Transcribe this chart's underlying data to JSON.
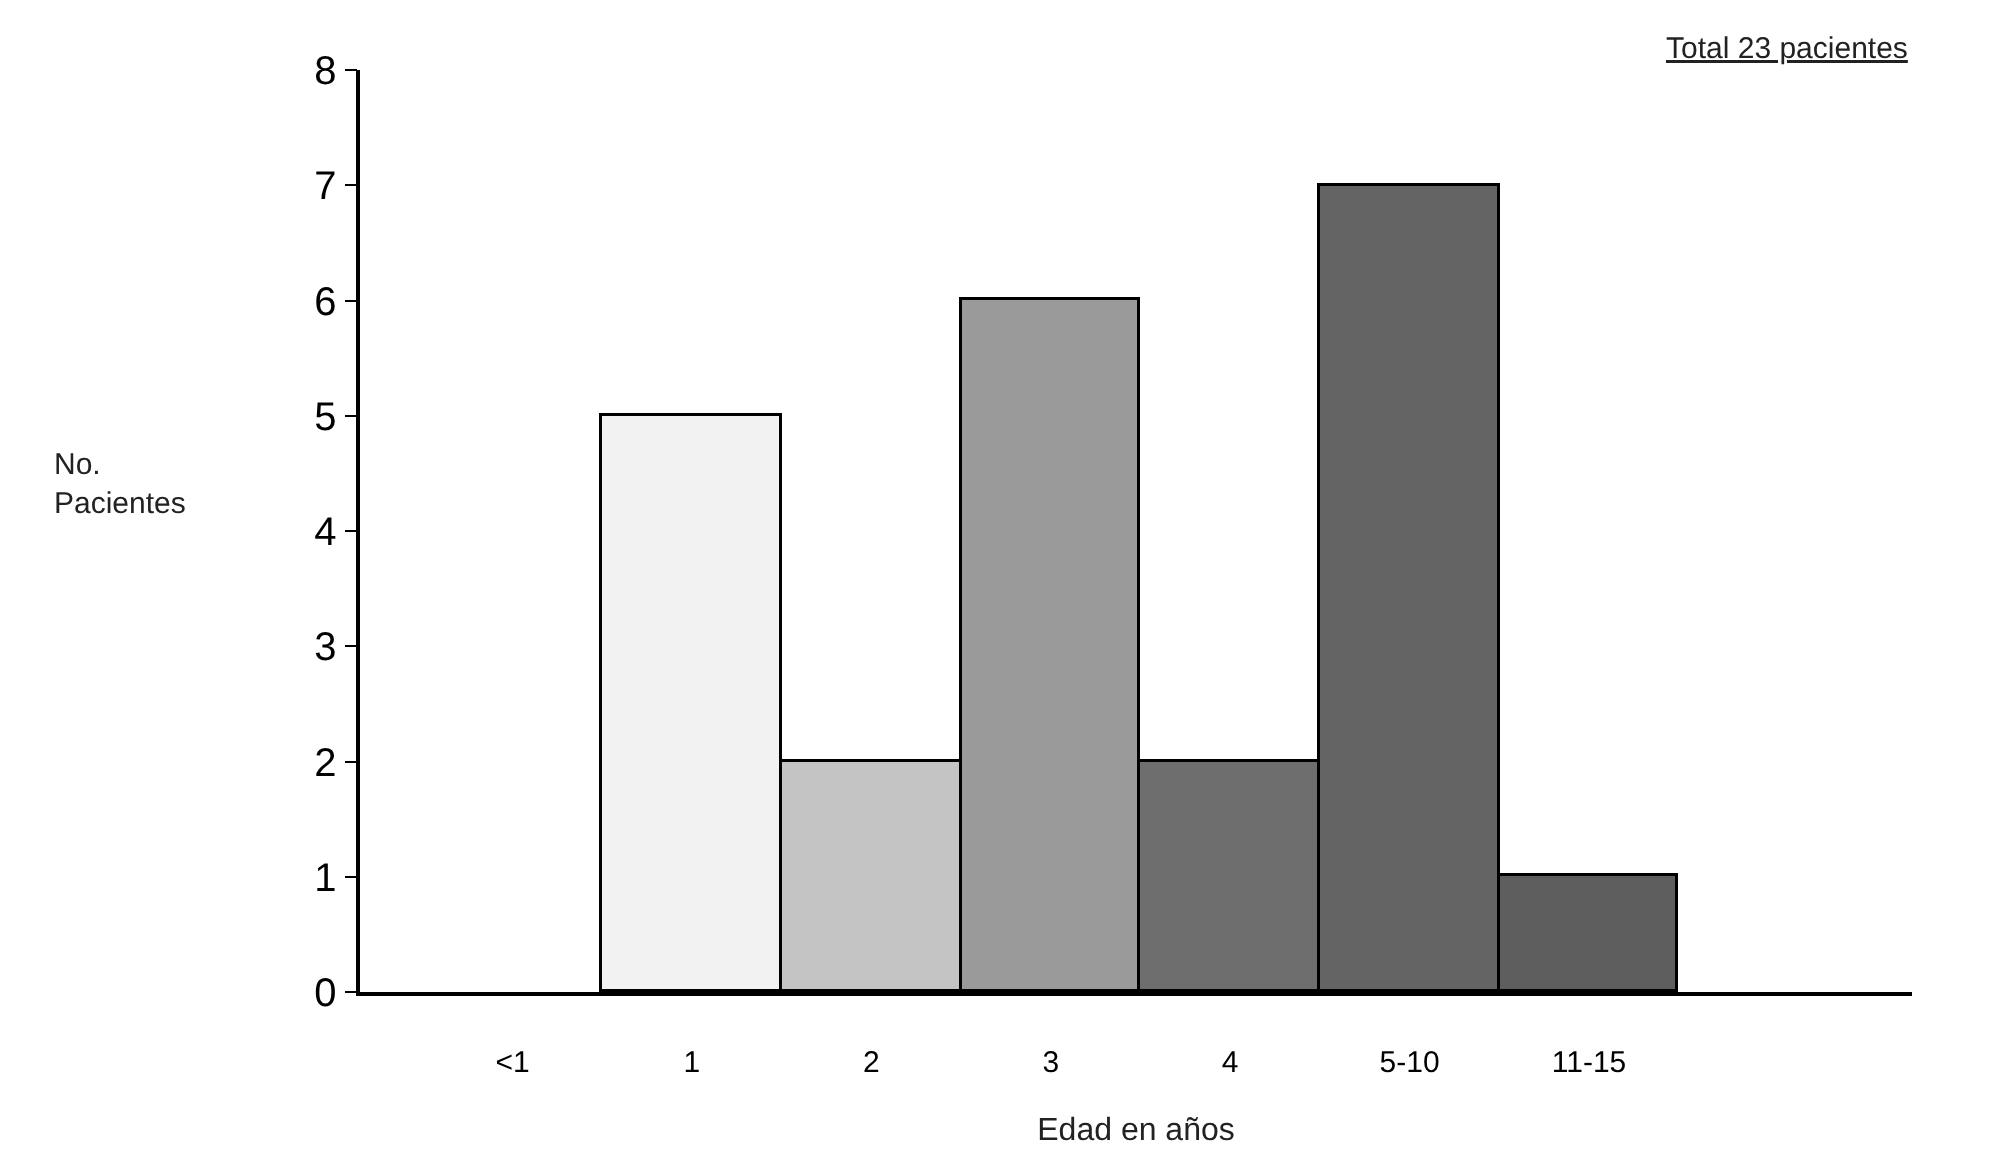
{
  "chart_data": {
    "type": "bar",
    "categories": [
      "<1",
      "1",
      "2",
      "3",
      "4",
      "5-10",
      "11-15"
    ],
    "values": [
      null,
      5,
      2,
      6,
      2,
      7,
      1
    ],
    "colors": [
      null,
      "#f2f2f2",
      "#c4c4c4",
      "#9a9a9a",
      "#6e6e6e",
      "#646464",
      "#5e5e5e"
    ],
    "xlabel": "Edad en años",
    "ylabel": "No.\nPacientes",
    "ylim": [
      0,
      8
    ],
    "yticks": [
      0,
      1,
      2,
      3,
      4,
      5,
      6,
      7,
      8
    ],
    "annotations": [
      "Total 23 pacientes"
    ],
    "legend": false
  }
}
